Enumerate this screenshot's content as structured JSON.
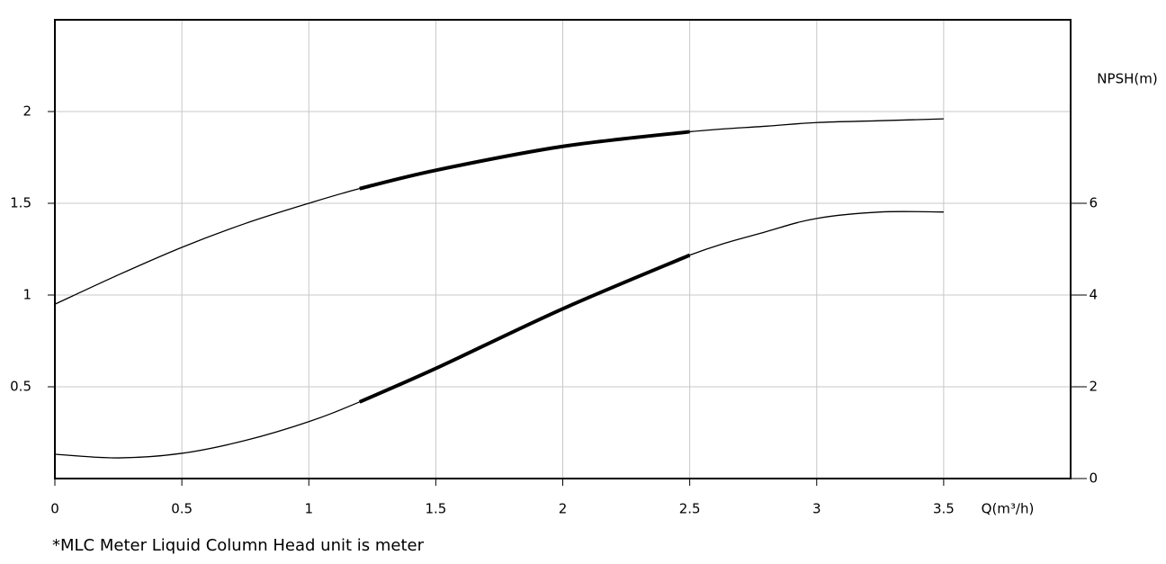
{
  "chart_data": {
    "type": "line",
    "x_label": "Q(m³/h)",
    "y2_label": "NPSH(m)",
    "footnote": "*MLC Meter Liquid Column Head unit is meter",
    "x": [
      0,
      0.25,
      0.5,
      0.75,
      1,
      1.2,
      1.5,
      2,
      2.5,
      2.8,
      3,
      3.25,
      3.5
    ],
    "series": [
      {
        "color": "#000000",
        "values": [
          0.95,
          1.11,
          1.26,
          1.39,
          1.5,
          1.58,
          1.68,
          1.81,
          1.89,
          1.92,
          1.94,
          1.95,
          1.96
        ]
      },
      {
        "color": "#000000",
        "axis": "y2",
        "values": [
          0.53,
          0.45,
          0.55,
          0.83,
          1.24,
          1.67,
          2.4,
          3.7,
          4.87,
          5.38,
          5.67,
          5.81,
          5.81
        ]
      }
    ],
    "highlight_xlim": [
      1.2,
      2.5
    ],
    "xlim": [
      0,
      4
    ],
    "xticks": [
      0,
      0.5,
      1,
      1.5,
      2,
      2.5,
      3,
      3.5
    ],
    "ylim": [
      0,
      2.5
    ],
    "yticks": [
      0.5,
      1,
      1.5,
      2
    ],
    "y2lim": [
      0,
      10
    ],
    "y2ticks": [
      0,
      2,
      4,
      6
    ],
    "grid": true
  }
}
